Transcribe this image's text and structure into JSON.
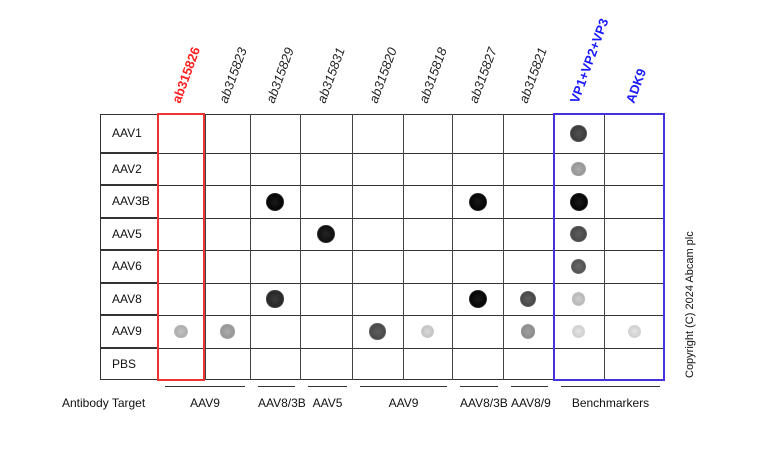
{
  "columns": [
    {
      "label": "ab315826",
      "color": "#ff2020"
    },
    {
      "label": "ab315823",
      "color": "#222222"
    },
    {
      "label": "ab315829",
      "color": "#222222"
    },
    {
      "label": "ab315831",
      "color": "#222222"
    },
    {
      "label": "ab315820",
      "color": "#222222"
    },
    {
      "label": "ab315818",
      "color": "#222222"
    },
    {
      "label": "ab315827",
      "color": "#222222"
    },
    {
      "label": "ab315821",
      "color": "#222222"
    },
    {
      "label": "VP1+VP2+VP3",
      "color": "#1a1aff"
    },
    {
      "label": "ADK9",
      "color": "#1a1aff"
    }
  ],
  "rows": [
    "AAV1",
    "AAV2",
    "AAV3B",
    "AAV5",
    "AAV6",
    "AAV8",
    "AAV9",
    "PBS"
  ],
  "dots": [
    {
      "row": 0,
      "col": 8,
      "intensity": 0.75
    },
    {
      "row": 1,
      "col": 8,
      "intensity": 0.35
    },
    {
      "row": 2,
      "col": 8,
      "intensity": 1.0
    },
    {
      "row": 3,
      "col": 8,
      "intensity": 0.7
    },
    {
      "row": 4,
      "col": 8,
      "intensity": 0.65
    },
    {
      "row": 5,
      "col": 8,
      "intensity": 0.2
    },
    {
      "row": 6,
      "col": 8,
      "intensity": 0.1
    },
    {
      "row": 2,
      "col": 2,
      "intensity": 1.0
    },
    {
      "row": 5,
      "col": 2,
      "intensity": 0.85
    },
    {
      "row": 3,
      "col": 3,
      "intensity": 0.95
    },
    {
      "row": 2,
      "col": 6,
      "intensity": 1.0
    },
    {
      "row": 5,
      "col": 6,
      "intensity": 1.0
    },
    {
      "row": 5,
      "col": 7,
      "intensity": 0.7
    },
    {
      "row": 6,
      "col": 7,
      "intensity": 0.4
    },
    {
      "row": 6,
      "col": 0,
      "intensity": 0.25
    },
    {
      "row": 6,
      "col": 1,
      "intensity": 0.35
    },
    {
      "row": 6,
      "col": 4,
      "intensity": 0.7
    },
    {
      "row": 6,
      "col": 5,
      "intensity": 0.15
    },
    {
      "row": 6,
      "col": 9,
      "intensity": 0.1
    }
  ],
  "highlight_boxes": [
    {
      "cols": [
        0,
        0
      ],
      "color": "#ee3333"
    },
    {
      "cols": [
        8,
        9
      ],
      "color": "#4433dd"
    }
  ],
  "footer": {
    "label": "Antibody Target",
    "groups": [
      {
        "label": "AAV9",
        "cols": [
          0,
          1
        ]
      },
      {
        "label": "AAV8/3B",
        "cols": [
          2,
          2
        ]
      },
      {
        "label": "AAV5",
        "cols": [
          3,
          3
        ]
      },
      {
        "label": "AAV9",
        "cols": [
          4,
          5
        ]
      },
      {
        "label": "AAV8/3B",
        "cols": [
          6,
          6
        ]
      },
      {
        "label": "AAV8/9",
        "cols": [
          7,
          7
        ]
      },
      {
        "label": "Benchmarkers",
        "cols": [
          8,
          9
        ]
      }
    ]
  },
  "copyright": "Copyright (C) 2024 Abcam plc"
}
